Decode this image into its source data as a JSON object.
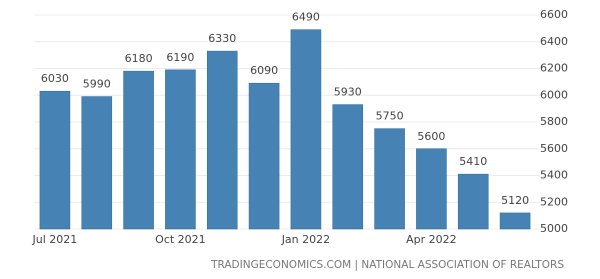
{
  "chart_data": {
    "type": "bar",
    "categories": [
      "Jul 2021",
      null,
      null,
      "Oct 2021",
      null,
      null,
      "Jan 2022",
      null,
      null,
      "Apr 2022",
      null,
      null
    ],
    "values": [
      6030,
      5990,
      6180,
      6190,
      6330,
      6090,
      6490,
      5930,
      5750,
      5600,
      5410,
      5120
    ],
    "color": "#4682b4",
    "ylim": [
      5000,
      6600
    ],
    "yticks": [
      5000,
      5200,
      5400,
      5600,
      5800,
      6000,
      6200,
      6400,
      6600
    ],
    "grid": true,
    "source": "TRADINGECONOMICS.COM | NATIONAL ASSOCIATION OF REALTORS"
  }
}
